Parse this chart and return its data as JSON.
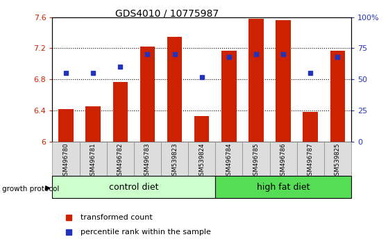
{
  "title": "GDS4010 / 10775987",
  "samples": [
    "GSM496780",
    "GSM496781",
    "GSM496782",
    "GSM496783",
    "GSM539823",
    "GSM539824",
    "GSM496784",
    "GSM496785",
    "GSM496786",
    "GSM496787",
    "GSM539825"
  ],
  "bar_values": [
    6.42,
    6.45,
    6.77,
    7.22,
    7.35,
    6.33,
    7.17,
    7.58,
    7.56,
    6.38,
    7.17
  ],
  "dot_values_pct": [
    55,
    55,
    60,
    70,
    70,
    52,
    68,
    70,
    70,
    55,
    68
  ],
  "ylim_left": [
    6.0,
    7.6
  ],
  "ylim_right": [
    0,
    100
  ],
  "yticks_left": [
    6.0,
    6.4,
    6.8,
    7.2,
    7.6
  ],
  "ytick_labels_left": [
    "6",
    "6.4",
    "6.8",
    "7.2",
    "7.6"
  ],
  "yticks_right": [
    0,
    25,
    50,
    75,
    100
  ],
  "ytick_labels_right": [
    "0",
    "25",
    "50",
    "75",
    "100%"
  ],
  "bar_color": "#cc2200",
  "dot_color": "#2233bb",
  "control_diet_indices": [
    0,
    1,
    2,
    3,
    4,
    5
  ],
  "high_fat_indices": [
    6,
    7,
    8,
    9,
    10
  ],
  "control_label": "control diet",
  "high_fat_label": "high fat diet",
  "group_label": "growth protocol",
  "legend_bar_label": "transformed count",
  "legend_dot_label": "percentile rank within the sample",
  "control_color": "#ccffcc",
  "high_fat_color": "#55dd55",
  "bar_width": 0.55
}
